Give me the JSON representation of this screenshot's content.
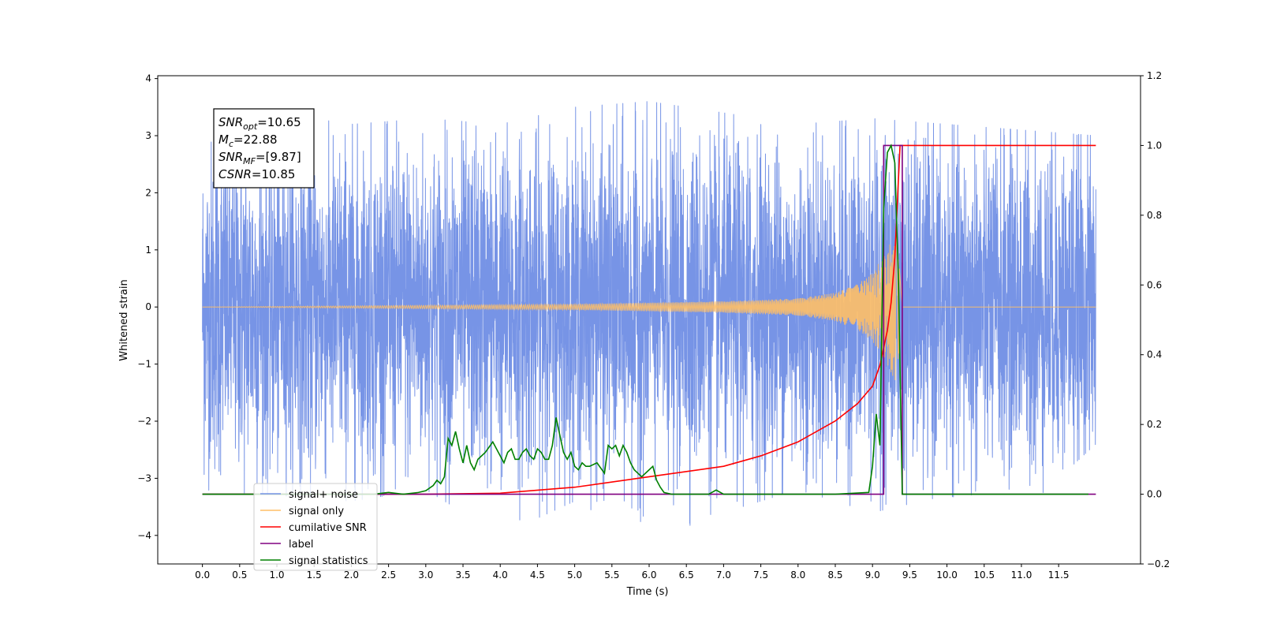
{
  "chart_data": {
    "type": "line",
    "title": "",
    "xlabel": "Time (s)",
    "ylabel": "Whitened strain",
    "xlim": [
      -0.6,
      12.6
    ],
    "ylim": [
      -4.5,
      4.05
    ],
    "y2lim": [
      -0.2,
      1.2
    ],
    "x_ticks": [
      0.0,
      0.5,
      1.0,
      1.5,
      2.0,
      2.5,
      3.0,
      3.5,
      4.0,
      4.5,
      5.0,
      5.5,
      6.0,
      6.5,
      7.0,
      7.5,
      8.0,
      8.5,
      9.0,
      9.5,
      10.0,
      10.5,
      11.0,
      11.5
    ],
    "x_tick_labels": [
      "0.0",
      "0.5",
      "1.0",
      "1.5",
      "2.0",
      "2.5",
      "3.0",
      "3.5",
      "4.0",
      "4.5",
      "5.0",
      "5.5",
      "6.0",
      "6.5",
      "7.0",
      "7.5",
      "8.0",
      "8.5",
      "9.0",
      "9.5",
      "10.0",
      "10.5",
      "11.0",
      "11.5"
    ],
    "y_ticks": [
      -4,
      -3,
      -2,
      -1,
      0,
      1,
      2,
      3,
      4
    ],
    "y_tick_labels": [
      "−4",
      "−3",
      "−2",
      "−1",
      "0",
      "1",
      "2",
      "3",
      "4"
    ],
    "y2_ticks": [
      -0.2,
      0.0,
      0.2,
      0.4,
      0.6,
      0.8,
      1.0,
      1.2
    ],
    "y2_tick_labels": [
      "−0.2",
      "0.0",
      "0.2",
      "0.4",
      "0.6",
      "0.8",
      "1.0",
      "1.2"
    ],
    "grid": false,
    "legend_position": "lower-left",
    "legend": [
      {
        "label": "signal+ noise",
        "color": "#7794e6"
      },
      {
        "label": "signal only",
        "color": "#ffbf66"
      },
      {
        "label": "cumilative SNR",
        "color": "#ff0000"
      },
      {
        "label": "label",
        "color": "#800080"
      },
      {
        "label": "signal statistics",
        "color": "#008000"
      }
    ],
    "annotation_lines": [
      {
        "sym": "SNR",
        "sub": "opt",
        "rest": "=10.65"
      },
      {
        "sym": "M",
        "sub": "c",
        "rest": "=22.88"
      },
      {
        "sym": "SNR",
        "sub": "MF",
        "rest": "=[9.87]"
      },
      {
        "sym": "CSNR",
        "sub": "",
        "rest": "=10.85"
      }
    ],
    "series": [
      {
        "name": "signal+ noise",
        "axis": "left",
        "color": "#7794e6",
        "x_range": [
          0.0,
          12.0
        ],
        "typical_amplitude": 1.5,
        "envelope_x": [
          0.0,
          1.0,
          2.0,
          3.0,
          4.0,
          5.0,
          6.0,
          7.0,
          8.0,
          9.0,
          10.0,
          11.0,
          12.0
        ],
        "envelope_upper": [
          3.0,
          3.4,
          3.2,
          3.3,
          3.2,
          3.5,
          3.6,
          3.4,
          3.2,
          3.3,
          3.2,
          3.1,
          3.0
        ],
        "envelope_lower": [
          -3.2,
          -3.3,
          -3.4,
          -3.2,
          -4.0,
          -3.4,
          -4.1,
          -3.6,
          -3.2,
          -3.6,
          -3.3,
          -3.6,
          -2.4
        ]
      },
      {
        "name": "signal only",
        "axis": "left",
        "color": "#ffbf66",
        "x": [
          0.0,
          5.0,
          7.0,
          8.0,
          8.5,
          8.8,
          9.0,
          9.1,
          9.2,
          9.3,
          9.33,
          9.4,
          9.5,
          12.0
        ],
        "amplitude": [
          0.0,
          0.05,
          0.1,
          0.15,
          0.25,
          0.4,
          0.6,
          0.8,
          1.0,
          1.3,
          1.2,
          0.0,
          0.0,
          0.0
        ]
      },
      {
        "name": "cumilative SNR",
        "axis": "right",
        "color": "#ff0000",
        "x": [
          0.0,
          2.0,
          3.0,
          4.0,
          5.0,
          6.0,
          7.0,
          7.5,
          8.0,
          8.5,
          8.8,
          9.0,
          9.1,
          9.2,
          9.25,
          9.3,
          9.33,
          9.37,
          12.0
        ],
        "values": [
          0.0,
          0.0,
          0.0,
          0.003,
          0.02,
          0.05,
          0.08,
          0.11,
          0.15,
          0.21,
          0.26,
          0.31,
          0.37,
          0.47,
          0.55,
          0.68,
          0.82,
          1.0,
          1.0
        ]
      },
      {
        "name": "label",
        "axis": "right",
        "color": "#800080",
        "x": [
          0.0,
          9.15,
          9.15,
          9.4,
          9.4,
          12.0
        ],
        "values": [
          0.0,
          0.0,
          1.0,
          1.0,
          0.0,
          0.0
        ]
      },
      {
        "name": "signal statistics",
        "axis": "right",
        "color": "#008000",
        "x": [
          0.0,
          2.3,
          2.5,
          2.7,
          2.9,
          3.0,
          3.1,
          3.15,
          3.2,
          3.25,
          3.3,
          3.35,
          3.4,
          3.45,
          3.5,
          3.55,
          3.6,
          3.65,
          3.7,
          3.8,
          3.9,
          4.0,
          4.05,
          4.1,
          4.15,
          4.2,
          4.25,
          4.3,
          4.35,
          4.4,
          4.45,
          4.5,
          4.55,
          4.6,
          4.65,
          4.7,
          4.75,
          4.8,
          4.85,
          4.9,
          4.95,
          5.0,
          5.05,
          5.1,
          5.15,
          5.2,
          5.3,
          5.4,
          5.45,
          5.5,
          5.55,
          5.6,
          5.65,
          5.7,
          5.75,
          5.8,
          5.85,
          5.9,
          6.0,
          6.05,
          6.1,
          6.15,
          6.2,
          6.3,
          6.5,
          6.8,
          6.9,
          7.0,
          7.1,
          7.5,
          8.5,
          8.95,
          9.0,
          9.05,
          9.1,
          9.15,
          9.2,
          9.25,
          9.3,
          9.35,
          9.4,
          11.0,
          11.9
        ],
        "values": [
          0.0,
          0.0,
          0.005,
          0.0,
          0.005,
          0.01,
          0.025,
          0.04,
          0.03,
          0.05,
          0.16,
          0.14,
          0.18,
          0.13,
          0.09,
          0.14,
          0.09,
          0.07,
          0.1,
          0.12,
          0.15,
          0.11,
          0.09,
          0.12,
          0.13,
          0.1,
          0.1,
          0.12,
          0.13,
          0.11,
          0.1,
          0.13,
          0.12,
          0.1,
          0.1,
          0.14,
          0.22,
          0.17,
          0.12,
          0.1,
          0.12,
          0.08,
          0.07,
          0.09,
          0.08,
          0.08,
          0.09,
          0.06,
          0.14,
          0.13,
          0.14,
          0.11,
          0.14,
          0.12,
          0.09,
          0.07,
          0.06,
          0.05,
          0.07,
          0.08,
          0.04,
          0.02,
          0.005,
          0.0,
          0.0,
          0.0,
          0.012,
          0.0,
          0.0,
          0.0,
          0.0,
          0.005,
          0.08,
          0.23,
          0.14,
          0.82,
          0.98,
          1.0,
          0.95,
          0.6,
          0.0,
          0.0,
          0.0
        ]
      }
    ]
  }
}
